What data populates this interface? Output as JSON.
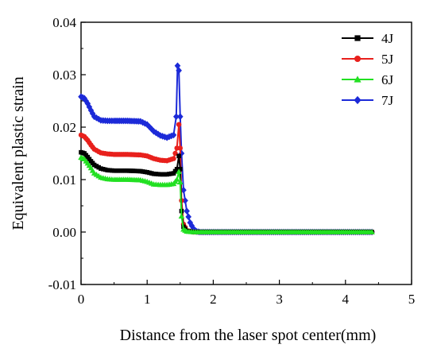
{
  "chart_data": {
    "type": "line",
    "title": "",
    "xlabel": "Distance from the laser spot center(mm)",
    "ylabel": "Equivalent plastic strain",
    "xlim": [
      0,
      5
    ],
    "ylim": [
      -0.01,
      0.04
    ],
    "xticks": [
      "0",
      "1",
      "2",
      "3",
      "4",
      "5"
    ],
    "yticks": [
      "-0.01",
      "0.00",
      "0.01",
      "0.02",
      "0.03",
      "0.04"
    ],
    "legend_position": "top-right",
    "grid": false,
    "series": [
      {
        "name": "4J",
        "color": "#000000",
        "marker": "square",
        "points": [
          [
            0,
            0.0152
          ],
          [
            0.05,
            0.015
          ],
          [
            0.1,
            0.0143
          ],
          [
            0.15,
            0.0135
          ],
          [
            0.2,
            0.0128
          ],
          [
            0.3,
            0.0121
          ],
          [
            0.4,
            0.0118
          ],
          [
            0.5,
            0.0117
          ],
          [
            0.7,
            0.0117
          ],
          [
            0.9,
            0.0116
          ],
          [
            1.0,
            0.0114
          ],
          [
            1.1,
            0.0111
          ],
          [
            1.2,
            0.011
          ],
          [
            1.3,
            0.011
          ],
          [
            1.4,
            0.0112
          ],
          [
            1.45,
            0.012
          ],
          [
            1.48,
            0.0145
          ],
          [
            1.5,
            0.012
          ],
          [
            1.52,
            0.004
          ],
          [
            1.55,
            0.001
          ],
          [
            1.6,
            0.0002
          ],
          [
            1.7,
            0.0
          ],
          [
            1.8,
            0.0
          ],
          [
            2.0,
            0.0
          ],
          [
            2.5,
            0.0
          ],
          [
            3.0,
            0.0
          ],
          [
            3.5,
            0.0
          ],
          [
            4.0,
            0.0
          ],
          [
            4.4,
            0.0
          ]
        ]
      },
      {
        "name": "5J",
        "color": "#e8201c",
        "marker": "circle",
        "points": [
          [
            0,
            0.0185
          ],
          [
            0.05,
            0.0182
          ],
          [
            0.1,
            0.0175
          ],
          [
            0.15,
            0.0166
          ],
          [
            0.2,
            0.0158
          ],
          [
            0.3,
            0.0151
          ],
          [
            0.4,
            0.0149
          ],
          [
            0.5,
            0.0148
          ],
          [
            0.7,
            0.0148
          ],
          [
            0.9,
            0.0147
          ],
          [
            1.0,
            0.0145
          ],
          [
            1.1,
            0.014
          ],
          [
            1.2,
            0.0137
          ],
          [
            1.3,
            0.0136
          ],
          [
            1.4,
            0.014
          ],
          [
            1.45,
            0.016
          ],
          [
            1.48,
            0.0205
          ],
          [
            1.5,
            0.016
          ],
          [
            1.52,
            0.006
          ],
          [
            1.55,
            0.0015
          ],
          [
            1.6,
            0.0003
          ],
          [
            1.7,
            0.0
          ],
          [
            1.8,
            0.0
          ],
          [
            2.0,
            0.0
          ],
          [
            2.5,
            0.0
          ],
          [
            3.0,
            0.0
          ],
          [
            3.5,
            0.0
          ],
          [
            4.0,
            0.0
          ],
          [
            4.4,
            0.0
          ]
        ]
      },
      {
        "name": "6J",
        "color": "#22e022",
        "marker": "triangle",
        "points": [
          [
            0,
            0.0142
          ],
          [
            0.05,
            0.0139
          ],
          [
            0.1,
            0.0131
          ],
          [
            0.15,
            0.0122
          ],
          [
            0.2,
            0.0112
          ],
          [
            0.3,
            0.0104
          ],
          [
            0.4,
            0.0101
          ],
          [
            0.5,
            0.01
          ],
          [
            0.7,
            0.01
          ],
          [
            0.9,
            0.0099
          ],
          [
            1.0,
            0.0096
          ],
          [
            1.1,
            0.0091
          ],
          [
            1.2,
            0.009
          ],
          [
            1.3,
            0.009
          ],
          [
            1.4,
            0.0092
          ],
          [
            1.45,
            0.01
          ],
          [
            1.48,
            0.0115
          ],
          [
            1.5,
            0.0095
          ],
          [
            1.52,
            0.003
          ],
          [
            1.55,
            0.0005
          ],
          [
            1.6,
            0.0001
          ],
          [
            1.7,
            0.0
          ],
          [
            1.8,
            0.0
          ],
          [
            2.0,
            0.0
          ],
          [
            2.5,
            0.0
          ],
          [
            3.0,
            0.0
          ],
          [
            3.5,
            0.0
          ],
          [
            4.0,
            0.0
          ],
          [
            4.4,
            0.0
          ]
        ]
      },
      {
        "name": "7J",
        "color": "#1c2ad8",
        "marker": "diamond",
        "points": [
          [
            0,
            0.0258
          ],
          [
            0.05,
            0.0255
          ],
          [
            0.1,
            0.0245
          ],
          [
            0.15,
            0.0232
          ],
          [
            0.2,
            0.022
          ],
          [
            0.3,
            0.0213
          ],
          [
            0.4,
            0.0212
          ],
          [
            0.5,
            0.0212
          ],
          [
            0.7,
            0.0212
          ],
          [
            0.9,
            0.0211
          ],
          [
            1.0,
            0.0205
          ],
          [
            1.1,
            0.0192
          ],
          [
            1.2,
            0.0184
          ],
          [
            1.3,
            0.018
          ],
          [
            1.4,
            0.0185
          ],
          [
            1.44,
            0.022
          ],
          [
            1.46,
            0.0317
          ],
          [
            1.48,
            0.0308
          ],
          [
            1.5,
            0.022
          ],
          [
            1.52,
            0.015
          ],
          [
            1.55,
            0.008
          ],
          [
            1.6,
            0.004
          ],
          [
            1.65,
            0.0018
          ],
          [
            1.7,
            0.0006
          ],
          [
            1.75,
            0.0001
          ],
          [
            1.8,
            0.0
          ],
          [
            2.0,
            0.0
          ],
          [
            2.5,
            0.0
          ],
          [
            3.0,
            0.0
          ],
          [
            3.5,
            0.0
          ],
          [
            4.0,
            0.0
          ],
          [
            4.4,
            0.0
          ]
        ]
      }
    ]
  }
}
